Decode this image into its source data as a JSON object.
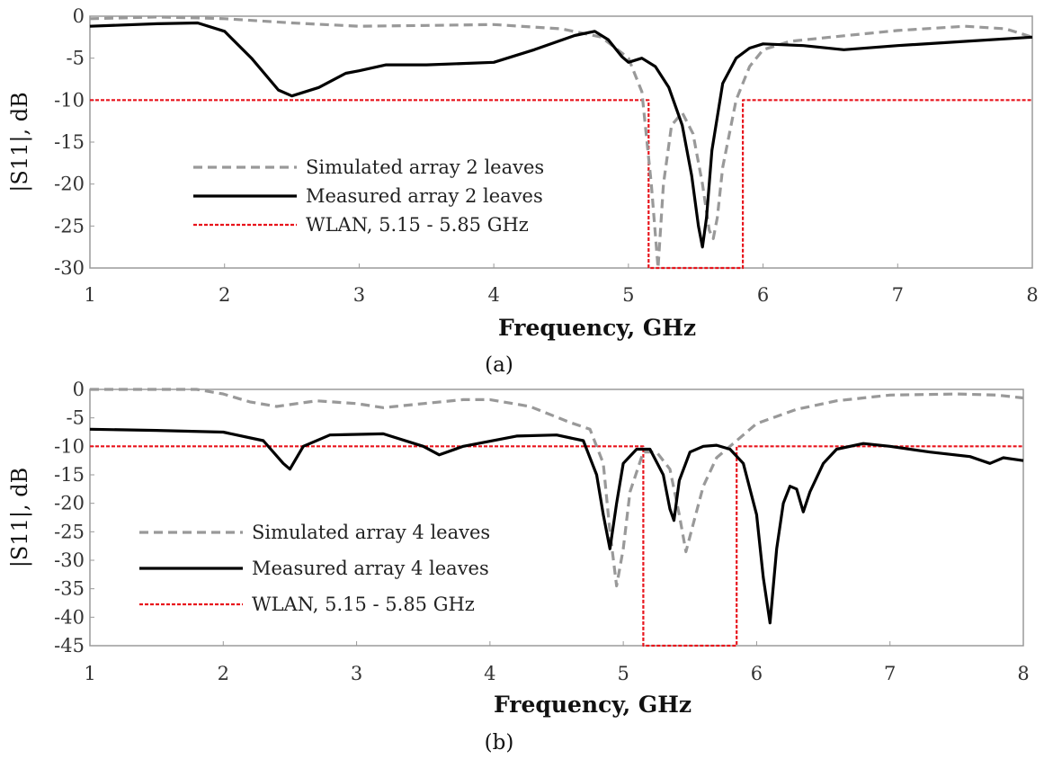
{
  "chart_data": [
    {
      "type": "line",
      "panel_label": "(a)",
      "xlabel": "Frequency, GHz",
      "ylabel": "|S11|, dB",
      "xlim": [
        1,
        8
      ],
      "ylim": [
        -30,
        0
      ],
      "xticks": [
        1,
        2,
        3,
        4,
        5,
        6,
        7,
        8
      ],
      "yticks": [
        0,
        -5,
        -10,
        -15,
        -20,
        -25,
        -30
      ],
      "grid": false,
      "legend_position": "left-center",
      "series": [
        {
          "name": "Simulated array 2 leaves",
          "color": "#999999",
          "style": "dashed",
          "x": [
            1,
            1.5,
            1.8,
            2,
            2.5,
            3,
            3.5,
            4,
            4.5,
            4.8,
            5,
            5.1,
            5.17,
            5.22,
            5.26,
            5.32,
            5.4,
            5.48,
            5.55,
            5.6,
            5.63,
            5.66,
            5.7,
            5.8,
            5.9,
            6,
            6.2,
            6.5,
            7,
            7.5,
            7.8,
            8
          ],
          "y": [
            -0.3,
            -0.1,
            -0.2,
            -0.3,
            -0.8,
            -1.2,
            -1.1,
            -1.0,
            -1.5,
            -2.5,
            -5.0,
            -9,
            -20,
            -30,
            -20,
            -13,
            -11.5,
            -14,
            -20,
            -25.5,
            -26.5,
            -24,
            -18,
            -10,
            -6,
            -4,
            -3,
            -2.5,
            -1.7,
            -1.2,
            -1.5,
            -2.5
          ]
        },
        {
          "name": "Measured array 2 leaves",
          "color": "#000000",
          "style": "solid",
          "x": [
            1,
            1.5,
            1.8,
            2.0,
            2.2,
            2.4,
            2.5,
            2.7,
            2.9,
            3.0,
            3.2,
            3.5,
            4.0,
            4.3,
            4.6,
            4.75,
            4.85,
            4.95,
            5.0,
            5.1,
            5.2,
            5.3,
            5.4,
            5.47,
            5.52,
            5.55,
            5.58,
            5.62,
            5.7,
            5.8,
            5.9,
            6.0,
            6.3,
            6.6,
            7.0,
            7.5,
            8.0
          ],
          "y": [
            -1.2,
            -0.9,
            -0.8,
            -1.8,
            -5,
            -8.8,
            -9.5,
            -8.5,
            -6.8,
            -6.5,
            -5.8,
            -5.8,
            -5.5,
            -4.0,
            -2.3,
            -1.8,
            -2.8,
            -4.8,
            -5.5,
            -5.0,
            -6.0,
            -8.5,
            -13,
            -19,
            -25,
            -27.5,
            -24,
            -16,
            -8,
            -5,
            -3.8,
            -3.3,
            -3.5,
            -4.0,
            -3.5,
            -3.0,
            -2.5
          ]
        },
        {
          "name": "WLAN, 5.15 - 5.85 GHz",
          "color": "#e8141c",
          "style": "dotted",
          "x": [
            1,
            5.15,
            5.15,
            5.85,
            5.85,
            8
          ],
          "y": [
            -10,
            -10,
            -30,
            -30,
            -10,
            -10
          ]
        }
      ]
    },
    {
      "type": "line",
      "panel_label": "(b)",
      "xlabel": "Frequency, GHz",
      "ylabel": "|S11|, dB",
      "xlim": [
        1,
        8
      ],
      "ylim": [
        -45,
        0
      ],
      "xticks": [
        1,
        2,
        3,
        4,
        5,
        6,
        7,
        8
      ],
      "yticks": [
        0,
        -5,
        -10,
        -15,
        -20,
        -25,
        -30,
        -35,
        -40,
        -45
      ],
      "grid": false,
      "legend_position": "left-bottom",
      "series": [
        {
          "name": "Simulated array 4 leaves",
          "color": "#999999",
          "style": "dashed",
          "x": [
            1,
            1.5,
            1.8,
            2.0,
            2.2,
            2.4,
            2.7,
            3.0,
            3.2,
            3.5,
            3.8,
            4.0,
            4.3,
            4.6,
            4.75,
            4.85,
            4.9,
            4.95,
            5.0,
            5.05,
            5.15,
            5.25,
            5.35,
            5.42,
            5.47,
            5.52,
            5.6,
            5.7,
            5.8,
            5.9,
            6.0,
            6.3,
            6.6,
            7.0,
            7.5,
            7.8,
            8.0
          ],
          "y": [
            0,
            0,
            0,
            -0.8,
            -2.2,
            -3.0,
            -2.0,
            -2.5,
            -3.2,
            -2.5,
            -1.8,
            -1.8,
            -3.0,
            -5.8,
            -7.0,
            -13,
            -25,
            -34.5,
            -28,
            -18,
            -11,
            -11,
            -14,
            -22,
            -28.5,
            -24,
            -17,
            -12,
            -10,
            -8,
            -6,
            -3.5,
            -2.0,
            -1.0,
            -0.8,
            -1.0,
            -1.5
          ]
        },
        {
          "name": "Measured array 4 leaves",
          "color": "#000000",
          "style": "solid",
          "x": [
            1,
            1.5,
            2.0,
            2.3,
            2.45,
            2.5,
            2.6,
            2.8,
            3.2,
            3.5,
            3.62,
            3.8,
            4.2,
            4.5,
            4.7,
            4.8,
            4.85,
            4.9,
            4.95,
            5.0,
            5.1,
            5.2,
            5.3,
            5.35,
            5.38,
            5.42,
            5.5,
            5.6,
            5.7,
            5.8,
            5.9,
            6.0,
            6.05,
            6.1,
            6.15,
            6.2,
            6.25,
            6.3,
            6.35,
            6.4,
            6.5,
            6.6,
            6.8,
            7.0,
            7.3,
            7.6,
            7.75,
            7.85,
            8.0
          ],
          "y": [
            -7.0,
            -7.2,
            -7.5,
            -9.0,
            -13.0,
            -14.0,
            -10.0,
            -8.0,
            -7.8,
            -10.0,
            -11.5,
            -10.0,
            -8.2,
            -8.0,
            -9.0,
            -15.0,
            -22.0,
            -28.0,
            -20.0,
            -13.0,
            -10.5,
            -10.5,
            -15.0,
            -21.0,
            -23.0,
            -16.0,
            -11.0,
            -10.0,
            -9.8,
            -10.5,
            -13.0,
            -22.0,
            -33.0,
            -41.0,
            -28.0,
            -20.0,
            -17.0,
            -17.5,
            -21.5,
            -18.0,
            -13.0,
            -10.5,
            -9.5,
            -10.0,
            -11.0,
            -11.8,
            -13.0,
            -12.0,
            -12.5
          ]
        },
        {
          "name": "WLAN, 5.15 - 5.85 GHz",
          "color": "#e8141c",
          "style": "dotted",
          "x": [
            1,
            5.15,
            5.15,
            5.85,
            5.85,
            8
          ],
          "y": [
            -10,
            -10,
            -45,
            -45,
            -10,
            -10
          ]
        }
      ]
    }
  ]
}
